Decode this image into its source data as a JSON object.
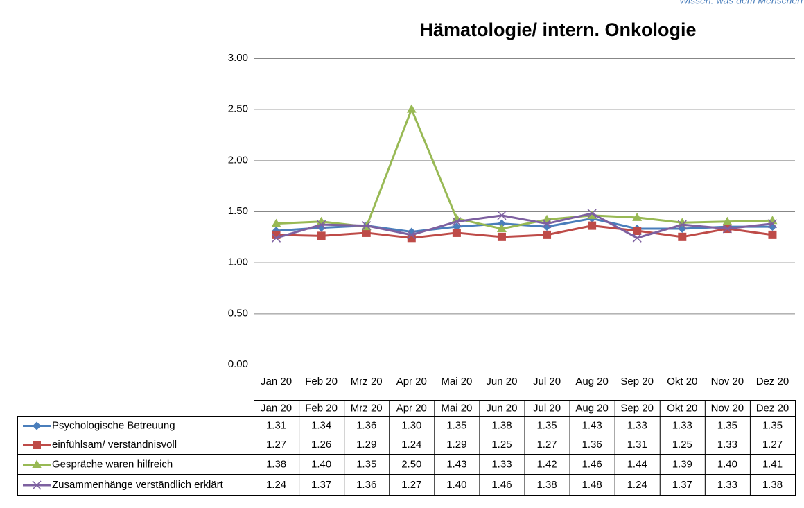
{
  "header": {
    "tagline": "Wissen. was dem Menschen"
  },
  "chart_data": {
    "type": "line",
    "title": "Hämatologie/ intern. Onkologie",
    "categories": [
      "Jan 20",
      "Feb 20",
      "Mrz 20",
      "Apr 20",
      "Mai 20",
      "Jun 20",
      "Jul 20",
      "Aug 20",
      "Sep 20",
      "Okt 20",
      "Nov 20",
      "Dez 20"
    ],
    "ylim": [
      0,
      3
    ],
    "yticks": [
      {
        "value": 0,
        "label": "0.00"
      },
      {
        "value": 0.5,
        "label": "0.50"
      },
      {
        "value": 1,
        "label": "1.00"
      },
      {
        "value": 1.5,
        "label": "1.50"
      },
      {
        "value": 2,
        "label": "2.00"
      },
      {
        "value": 2.5,
        "label": "2.50"
      },
      {
        "value": 3,
        "label": "3.00"
      }
    ],
    "grid": true,
    "series": [
      {
        "name": "Psychologische  Betreuung",
        "color": "#4a7ebb",
        "marker": "diamond",
        "values": [
          1.31,
          1.34,
          1.36,
          1.3,
          1.35,
          1.38,
          1.35,
          1.43,
          1.33,
          1.33,
          1.35,
          1.35
        ],
        "value_labels": [
          "1.31",
          "1.34",
          "1.36",
          "1.30",
          "1.35",
          "1.38",
          "1.35",
          "1.43",
          "1.33",
          "1.33",
          "1.35",
          "1.35"
        ]
      },
      {
        "name": "einfühlsam/ verständnisvoll",
        "color": "#be4b48",
        "marker": "square",
        "values": [
          1.27,
          1.26,
          1.29,
          1.24,
          1.29,
          1.25,
          1.27,
          1.36,
          1.31,
          1.25,
          1.33,
          1.27
        ],
        "value_labels": [
          "1.27",
          "1.26",
          "1.29",
          "1.24",
          "1.29",
          "1.25",
          "1.27",
          "1.36",
          "1.31",
          "1.25",
          "1.33",
          "1.27"
        ]
      },
      {
        "name": "Gespräche waren hilfreich",
        "color": "#98b954",
        "marker": "triangle",
        "values": [
          1.38,
          1.4,
          1.35,
          2.5,
          1.43,
          1.33,
          1.42,
          1.46,
          1.44,
          1.39,
          1.4,
          1.41
        ],
        "value_labels": [
          "1.38",
          "1.40",
          "1.35",
          "2.50",
          "1.43",
          "1.33",
          "1.42",
          "1.46",
          "1.44",
          "1.39",
          "1.40",
          "1.41"
        ]
      },
      {
        "name": "Zusammenhänge verständlich erklärt",
        "color": "#7d60a0",
        "marker": "x",
        "values": [
          1.24,
          1.37,
          1.36,
          1.27,
          1.4,
          1.46,
          1.38,
          1.48,
          1.24,
          1.37,
          1.33,
          1.38
        ],
        "value_labels": [
          "1.24",
          "1.37",
          "1.36",
          "1.27",
          "1.40",
          "1.46",
          "1.38",
          "1.48",
          "1.24",
          "1.37",
          "1.33",
          "1.38"
        ]
      }
    ]
  }
}
